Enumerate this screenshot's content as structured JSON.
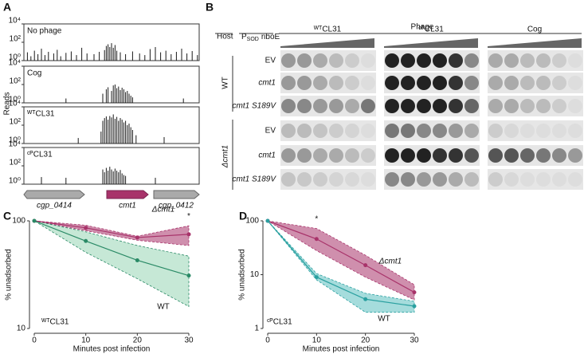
{
  "panel_labels": [
    "A",
    "B",
    "C",
    "D"
  ],
  "panel_a": {
    "y_label": "Reads",
    "genes": [
      "cgp_0414",
      "cmt1",
      "cgp_0412"
    ]
  },
  "panel_b": {
    "host_label": "Host",
    "promoter": {
      "main": "P",
      "sub": "SOD",
      "rest": "riboE"
    },
    "phage_label": "Phage",
    "phages": [
      "ᵂᵀCL31",
      "ᶜᴾCL31",
      "Cog"
    ],
    "hosts": [
      "WT",
      "Δcmt1"
    ],
    "constructs": [
      "EV",
      "cmt1",
      "cmt1 S189V"
    ]
  },
  "chart_data": [
    {
      "type": "bar",
      "title": "No phage",
      "color": "#1a1a1a",
      "xlim": [
        0,
        100
      ],
      "ylim": [
        1,
        10000
      ],
      "log_y": true,
      "yticks": [
        {
          "value": 1,
          "label": "10⁰"
        },
        {
          "value": 100,
          "label": "10²"
        },
        {
          "value": 10000,
          "label": "10⁴"
        }
      ],
      "x": [
        2,
        4,
        6,
        8,
        10,
        12,
        14,
        17,
        19,
        21,
        24,
        27,
        30,
        33,
        36,
        40,
        43,
        46,
        47,
        48,
        49,
        50,
        51,
        52,
        53,
        55,
        58,
        62,
        66,
        69,
        72,
        75,
        78,
        81,
        84,
        87,
        90,
        93,
        96,
        99
      ],
      "values": [
        8,
        3,
        12,
        5,
        20,
        4,
        9,
        6,
        15,
        3,
        7,
        10,
        4,
        25,
        6,
        5,
        9,
        14,
        40,
        60,
        30,
        80,
        25,
        50,
        12,
        8,
        5,
        10,
        6,
        4,
        18,
        30,
        8,
        12,
        5,
        9,
        20,
        6,
        11,
        4
      ]
    },
    {
      "type": "bar",
      "title": "Cog",
      "color": "#1a1a1a",
      "xlim": [
        0,
        100
      ],
      "ylim": [
        1,
        10000
      ],
      "log_y": true,
      "yticks": [
        {
          "value": 1,
          "label": "10⁰"
        },
        {
          "value": 100,
          "label": "10²"
        },
        {
          "value": 10000,
          "label": "10⁴"
        }
      ],
      "x": [
        24,
        45,
        47,
        48,
        50,
        51,
        52,
        53,
        54,
        55,
        56,
        57,
        58,
        59,
        60,
        61,
        62,
        91
      ],
      "values": [
        3,
        10,
        30,
        50,
        20,
        80,
        100,
        40,
        60,
        25,
        45,
        30,
        15,
        20,
        10,
        6,
        4,
        3
      ]
    },
    {
      "type": "bar",
      "title": "ᵂᵀCL31",
      "color": "#1a1a1a",
      "xlim": [
        0,
        100
      ],
      "ylim": [
        1,
        10000
      ],
      "log_y": true,
      "yticks": [
        {
          "value": 1,
          "label": "10⁰"
        },
        {
          "value": 100,
          "label": "10²"
        },
        {
          "value": 10000,
          "label": "10⁴"
        }
      ],
      "x": [
        31,
        44,
        45,
        46,
        47,
        48,
        49,
        50,
        51,
        52,
        53,
        54,
        55,
        56,
        57,
        58,
        59,
        60,
        61,
        62,
        64,
        80
      ],
      "values": [
        4,
        20,
        300,
        600,
        900,
        400,
        1000,
        700,
        1500,
        500,
        800,
        300,
        600,
        400,
        200,
        300,
        100,
        150,
        60,
        30,
        8,
        5
      ]
    },
    {
      "type": "bar",
      "title": "ᶜᴾCL31",
      "color": "#1a1a1a",
      "xlim": [
        0,
        100
      ],
      "ylim": [
        1,
        10000
      ],
      "log_y": true,
      "yticks": [
        {
          "value": 1,
          "label": "10⁰"
        },
        {
          "value": 100,
          "label": "10²"
        },
        {
          "value": 10000,
          "label": "10⁴"
        }
      ],
      "x": [
        10,
        24,
        45,
        46,
        47,
        48,
        49,
        50,
        51,
        52,
        53,
        54,
        55,
        56,
        57,
        58,
        75
      ],
      "values": [
        6,
        5,
        40,
        20,
        60,
        30,
        80,
        40,
        25,
        50,
        30,
        20,
        35,
        15,
        10,
        8,
        5
      ]
    },
    {
      "type": "line",
      "annotation": "ᵂᵀCL31",
      "star": {
        "text": "*",
        "x": 30
      },
      "x_label": "Minutes post infection",
      "y_label": "% unadsorbed",
      "x": [
        0,
        10,
        20,
        30
      ],
      "xlim": [
        0,
        30
      ],
      "xticks": [
        0,
        10,
        20,
        30
      ],
      "ylim": [
        10,
        100
      ],
      "yticks": [
        10,
        100
      ],
      "log_y": true,
      "series": [
        {
          "name": "Δcmt1",
          "color": "#a8336a",
          "values": [
            100,
            86,
            70,
            75
          ],
          "lower": [
            100,
            81,
            66,
            59
          ],
          "upper": [
            100,
            91,
            72,
            90
          ]
        },
        {
          "name": "WT",
          "color": "#2a8a66",
          "band_color": "#b8e2cc",
          "values": [
            100,
            65,
            43,
            31
          ],
          "lower": [
            100,
            51,
            29,
            16
          ],
          "upper": [
            100,
            79,
            59,
            47
          ]
        }
      ]
    },
    {
      "type": "line",
      "annotation": "ᶜᴾCL31",
      "star": {
        "text": "*",
        "x": 10
      },
      "x_label": "Minutes post infection",
      "y_label": "% unadsorbed",
      "x": [
        0,
        10,
        20,
        30
      ],
      "xlim": [
        0,
        30
      ],
      "xticks": [
        0,
        10,
        20,
        30
      ],
      "ylim": [
        1,
        100
      ],
      "yticks": [
        1,
        10,
        100
      ],
      "log_y": true,
      "series": [
        {
          "name": "Δcmt1",
          "color": "#a8336a",
          "values": [
            100,
            46,
            15,
            4.7
          ],
          "lower": [
            100,
            28,
            9,
            3.4
          ],
          "upper": [
            100,
            72,
            23,
            6.5
          ]
        },
        {
          "name": "WT",
          "color": "#2aa0a0",
          "band_color": "#8fd3d3",
          "values": [
            100,
            9,
            3.5,
            2.6
          ],
          "lower": [
            100,
            8,
            2,
            2
          ],
          "upper": [
            100,
            10.5,
            4.5,
            3.2
          ]
        }
      ]
    }
  ]
}
